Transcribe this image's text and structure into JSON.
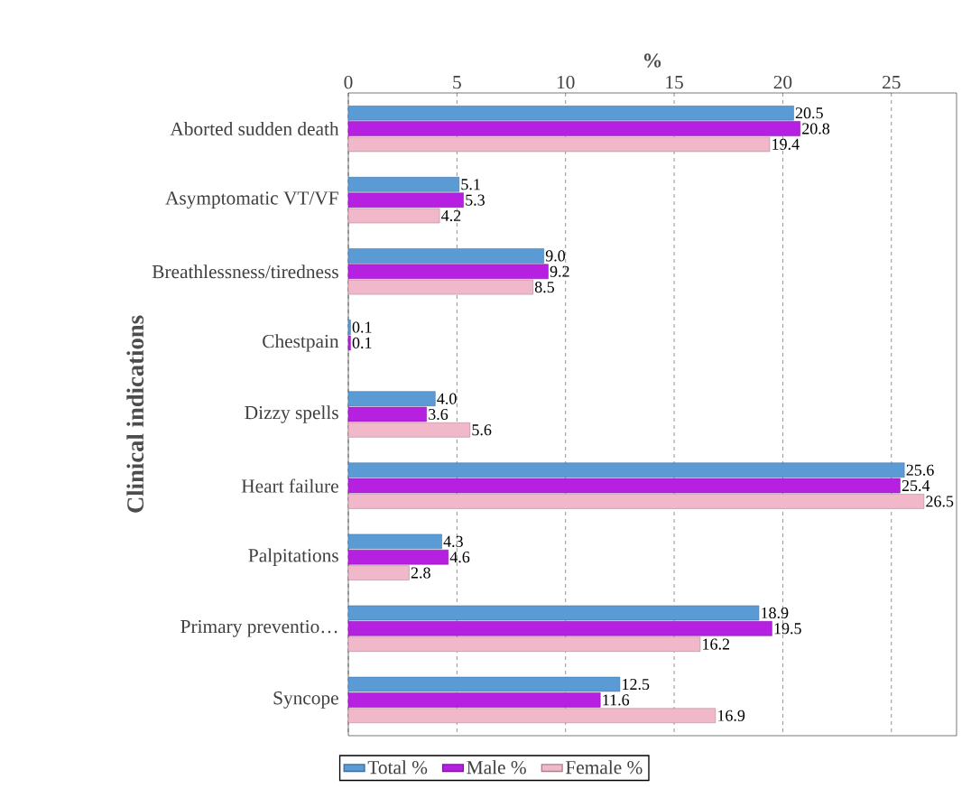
{
  "chart_data": {
    "type": "bar",
    "orientation": "horizontal",
    "xlabel": "%",
    "ylabel": "Clinical indications",
    "categories": [
      "Aborted sudden death",
      "Asymptomatic VT/VF",
      "Breathlessness/tiredness",
      "Chestpain",
      "Dizzy spells",
      "Heart failure",
      "Palpitations",
      "Primary preventio…",
      "Syncope"
    ],
    "series": [
      {
        "name": "Total %",
        "color": "#5b9bd5",
        "values": [
          20.5,
          5.1,
          9.0,
          0.1,
          4.0,
          25.6,
          4.3,
          18.9,
          12.5
        ],
        "value_labels": [
          "20.5",
          "5.1",
          "9.0",
          "0.1",
          "4.0",
          "25.6",
          "4.3",
          "18.9",
          "12.5"
        ]
      },
      {
        "name": "Male %",
        "color": "#b620e0",
        "values": [
          20.8,
          5.3,
          9.2,
          0.1,
          3.6,
          25.4,
          4.6,
          19.5,
          11.6
        ],
        "value_labels": [
          "20.8",
          "5.3",
          "9.2",
          "0.1",
          "3.6",
          "25.4",
          "4.6",
          "19.5",
          "11.6"
        ]
      },
      {
        "name": "Female %",
        "color": "#f0b8c8",
        "values": [
          19.4,
          4.2,
          8.5,
          null,
          5.6,
          26.5,
          2.8,
          16.2,
          16.9
        ],
        "value_labels": [
          "19.4",
          "4.2",
          "8.5",
          null,
          "5.6",
          "26.5",
          "2.8",
          "16.2",
          "16.9"
        ]
      }
    ],
    "xlim": [
      0,
      28
    ],
    "xticks": [
      0,
      5,
      10,
      15,
      20,
      25
    ],
    "grid": "x",
    "legend": "bottom"
  }
}
